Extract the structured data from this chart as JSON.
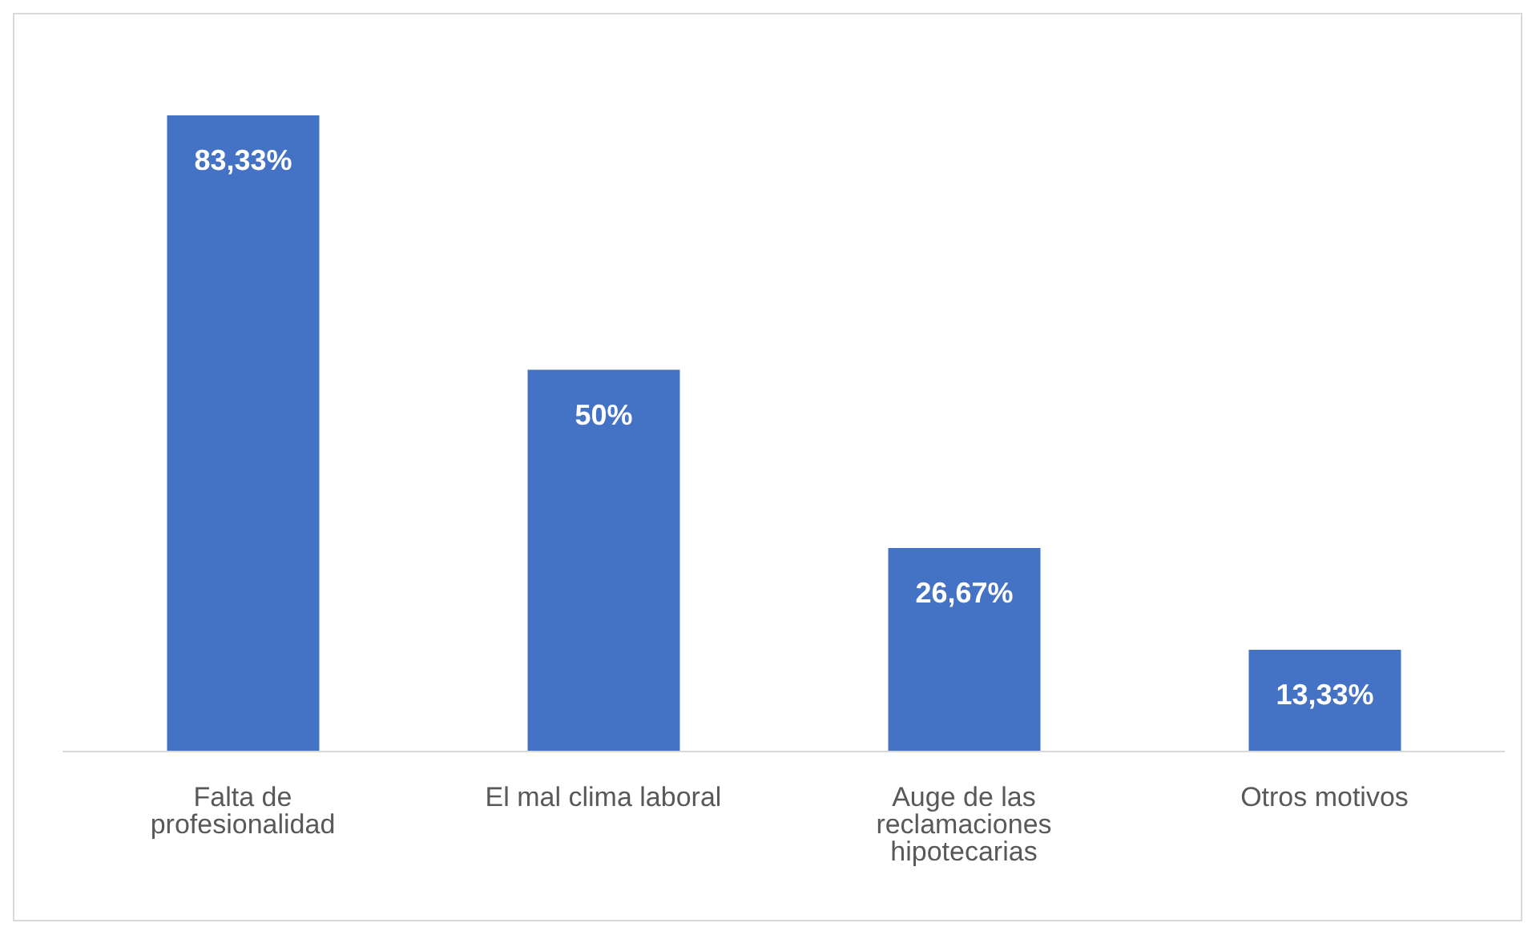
{
  "chart_data": {
    "type": "bar",
    "categories": [
      "Falta de profesionalidad",
      "El mal clima laboral",
      "Auge de las reclamaciones hipotecarias",
      "Otros motivos"
    ],
    "values": [
      83.33,
      50,
      26.67,
      13.33
    ],
    "value_labels": [
      "83,33%",
      "50%",
      "26,67%",
      "13,33%"
    ],
    "color": "#4472c4",
    "tick_labels": "x",
    "grid": false,
    "legend": false
  }
}
